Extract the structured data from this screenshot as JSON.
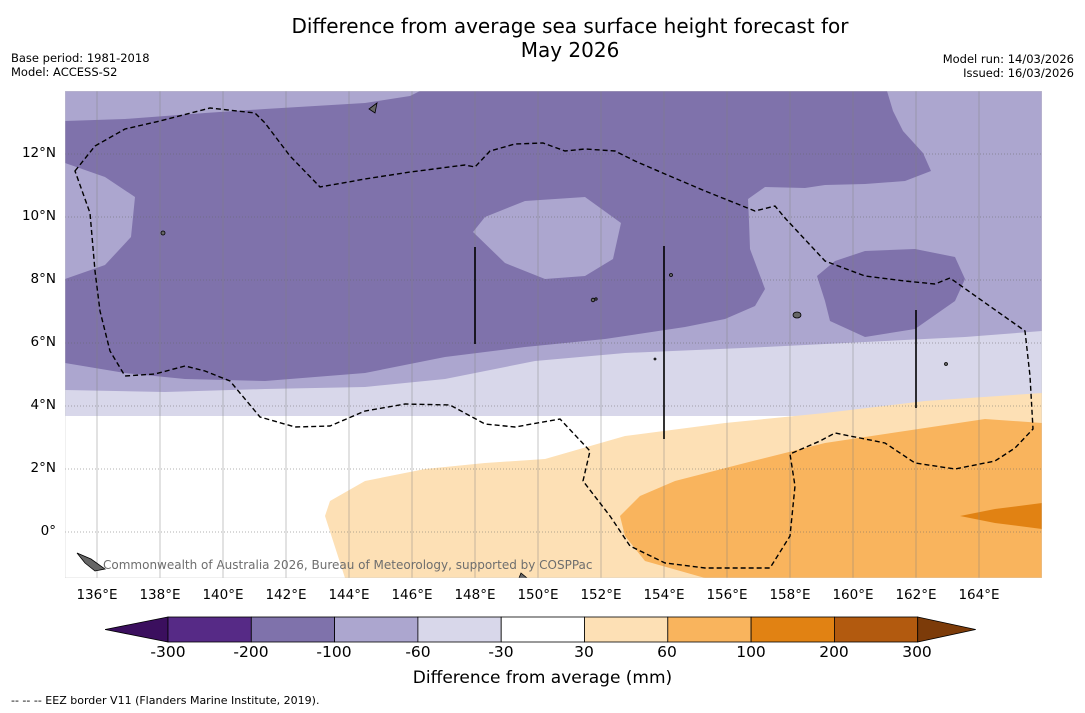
{
  "header": {
    "title_line1": "Difference from average sea surface height forecast for",
    "title_line2": "May 2026",
    "base_period": "Base period: 1981-2018",
    "model": "Model: ACCESS-S2",
    "model_run": "Model run: 14/03/2026",
    "issued": "Issued: 16/03/2026"
  },
  "axes": {
    "lat_labels": [
      "12°N",
      "10°N",
      "8°N",
      "6°N",
      "4°N",
      "2°N",
      "0°"
    ],
    "lon_labels": [
      "136°E",
      "138°E",
      "140°E",
      "142°E",
      "144°E",
      "146°E",
      "148°E",
      "150°E",
      "152°E",
      "154°E",
      "156°E",
      "158°E",
      "160°E",
      "162°E",
      "164°E"
    ]
  },
  "map": {
    "credit": "Commonwealth of Australia 2026, Bureau of Meteorology, supported by COSPPac",
    "region": "Western Pacific, 135°E–166°E, 1.5°S–14°N"
  },
  "colorbar": {
    "title": "Difference from average (mm)",
    "tick_labels": [
      "-300",
      "-200",
      "-100",
      "-60",
      "-30",
      "30",
      "60",
      "100",
      "200",
      "300"
    ],
    "colors": [
      "#3b0f5e",
      "#562a86",
      "#7f72ab",
      "#aca6cf",
      "#d8d7ea",
      "#ffffff",
      "#fde0b5",
      "#f9b45d",
      "#e18213",
      "#b25a0f",
      "#7c3b09"
    ]
  },
  "legend": {
    "eez": "--  --  -- EEZ border V11 (Flanders Marine Institute, 2019)."
  }
}
